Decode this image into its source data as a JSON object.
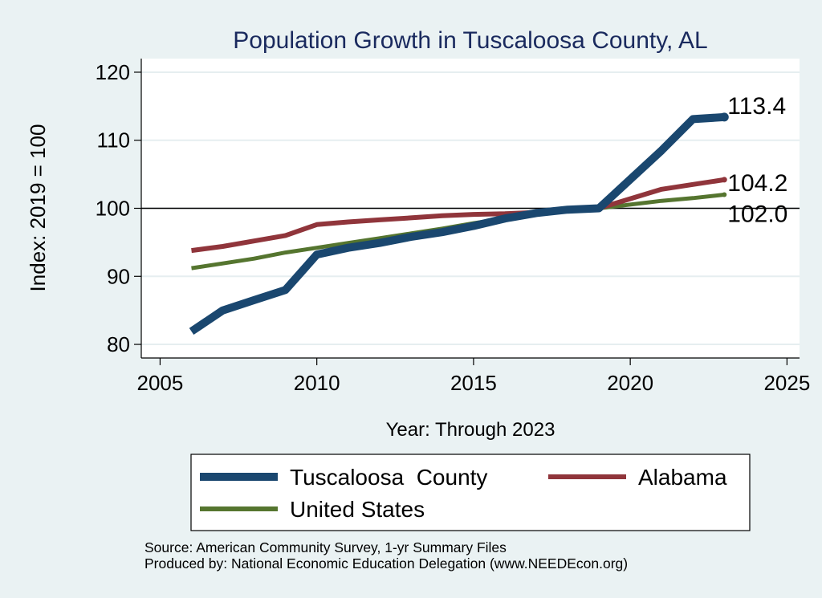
{
  "chart_data": {
    "type": "line",
    "title": "Population Growth in Tuscaloosa County, AL",
    "xlabel": "Year: Through 2023",
    "ylabel": "Index: 2019 = 100",
    "xlim": [
      2004.4,
      2025.4
    ],
    "ylim": [
      78,
      122
    ],
    "xticks": [
      2005,
      2010,
      2015,
      2020,
      2025
    ],
    "yticks": [
      80,
      90,
      100,
      110,
      120
    ],
    "reference_line": 100,
    "grid": true,
    "legend_position": "bottom",
    "series": [
      {
        "name": "Tuscaloosa  County",
        "color": "#1a476f",
        "x": [
          2006,
          2007,
          2008,
          2009,
          2010,
          2011,
          2012,
          2013,
          2014,
          2015,
          2016,
          2017,
          2018,
          2019,
          2021,
          2022,
          2023
        ],
        "values": [
          81.9,
          85.0,
          86.5,
          88.0,
          93.2,
          94.2,
          94.9,
          95.8,
          96.5,
          97.4,
          98.5,
          99.3,
          99.8,
          100.0,
          108.5,
          113.1,
          113.4
        ],
        "end_label": "113.4"
      },
      {
        "name": "Alabama",
        "color": "#90353b",
        "x": [
          2006,
          2007,
          2008,
          2009,
          2010,
          2011,
          2012,
          2013,
          2014,
          2015,
          2016,
          2017,
          2018,
          2019,
          2021,
          2022,
          2023
        ],
        "values": [
          93.8,
          94.4,
          95.2,
          96.0,
          97.6,
          98.0,
          98.3,
          98.6,
          98.9,
          99.1,
          99.2,
          99.4,
          99.7,
          100.0,
          102.8,
          103.5,
          104.2
        ],
        "end_label": "104.2"
      },
      {
        "name": "United States",
        "color": "#55752f",
        "x": [
          2006,
          2007,
          2008,
          2009,
          2010,
          2011,
          2012,
          2013,
          2014,
          2015,
          2016,
          2017,
          2018,
          2019,
          2021,
          2022,
          2023
        ],
        "values": [
          91.2,
          91.9,
          92.6,
          93.5,
          94.2,
          94.9,
          95.6,
          96.3,
          97.0,
          97.8,
          98.5,
          99.1,
          99.6,
          100.0,
          101.1,
          101.5,
          102.0
        ],
        "end_label": "102.0"
      }
    ]
  },
  "footer": {
    "source": "Source: American Community Survey, 1-yr Summary Files",
    "produced_by": "Produced by: National Economic Education Delegation (www.NEEDEcon.org)"
  }
}
